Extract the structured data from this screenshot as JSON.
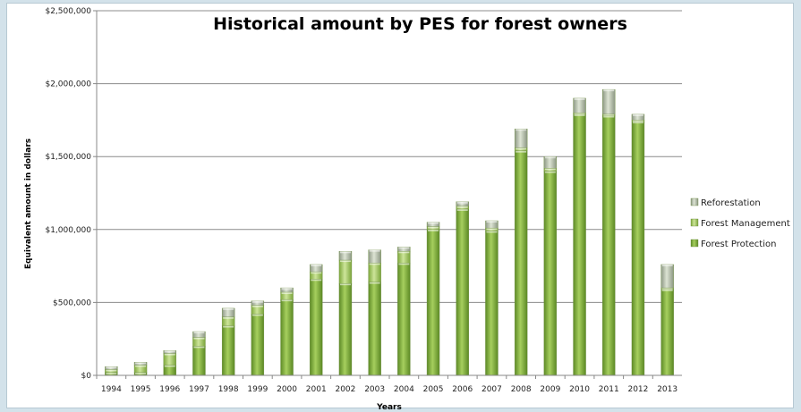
{
  "chart_data": {
    "type": "bar",
    "stacked": true,
    "title": "Historical amount by PES for forest owners",
    "xlabel": "Years",
    "ylabel": "Equivalent amount in dollars",
    "ylim": [
      0,
      2500000
    ],
    "yticks": [
      0,
      500000,
      1000000,
      1500000,
      2000000,
      2500000
    ],
    "ytick_labels": [
      "$0",
      "$500,000",
      "$1,000,000",
      "$1,500,000",
      "$2,000,000",
      "$2,500,000"
    ],
    "grid": true,
    "legend_position": "right",
    "categories": [
      "1994",
      "1995",
      "1996",
      "1997",
      "1998",
      "1999",
      "2000",
      "2001",
      "2002",
      "2003",
      "2004",
      "2005",
      "2006",
      "2007",
      "2008",
      "2009",
      "2010",
      "2011",
      "2012",
      "2013"
    ],
    "series": [
      {
        "name": "Forest Protection",
        "color": "#7aa43c",
        "values": [
          20000,
          20000,
          70000,
          200000,
          340000,
          420000,
          520000,
          660000,
          630000,
          640000,
          770000,
          1000000,
          1140000,
          990000,
          1540000,
          1400000,
          1790000,
          1780000,
          1740000,
          590000
        ]
      },
      {
        "name": "Forest Management",
        "color": "#9cc25a",
        "values": [
          20000,
          50000,
          80000,
          60000,
          60000,
          60000,
          50000,
          50000,
          160000,
          130000,
          80000,
          20000,
          20000,
          20000,
          20000,
          20000,
          10000,
          10000,
          10000,
          10000
        ]
      },
      {
        "name": "Reforestation",
        "color": "#b5bfa9",
        "values": [
          20000,
          20000,
          20000,
          40000,
          60000,
          30000,
          30000,
          50000,
          60000,
          90000,
          30000,
          30000,
          30000,
          50000,
          130000,
          80000,
          100000,
          170000,
          40000,
          160000
        ]
      }
    ]
  }
}
